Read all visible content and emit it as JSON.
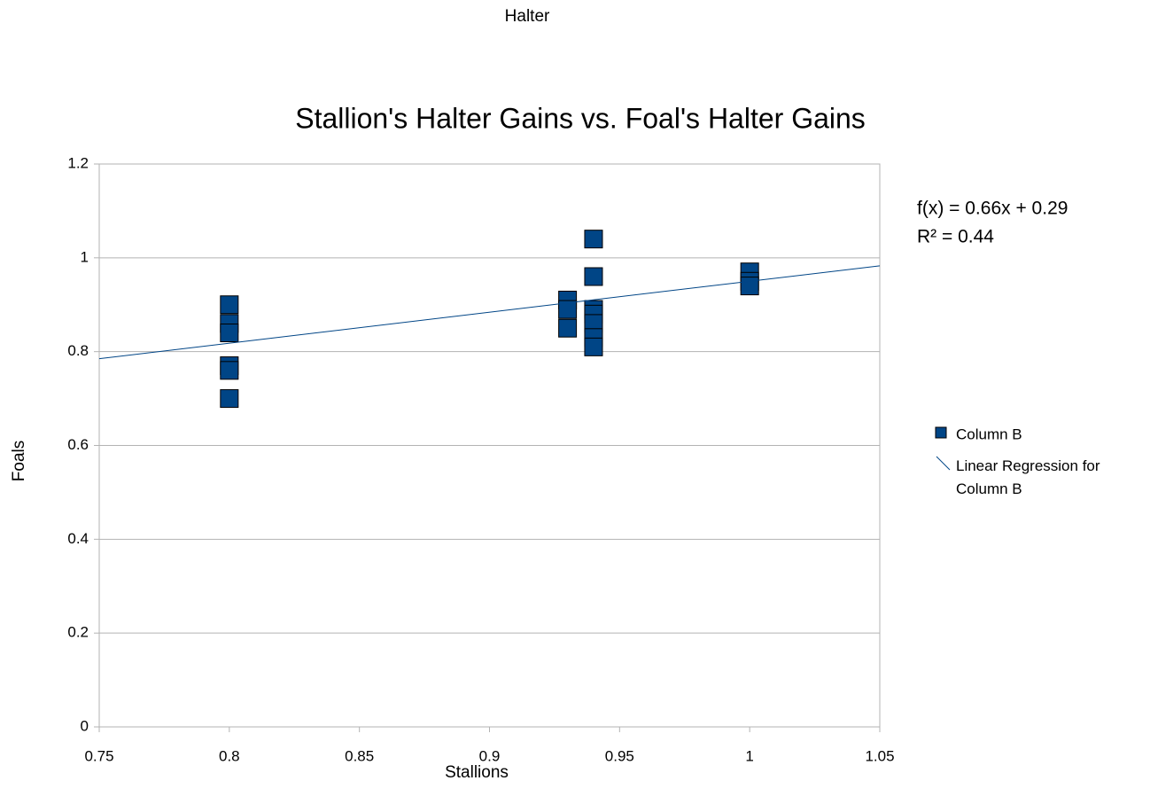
{
  "chart_data": {
    "type": "scatter",
    "super_title": "Halter",
    "title": "Stallion's Halter Gains vs. Foal's Halter Gains",
    "x_label": "Stallions",
    "y_label": "Foals",
    "series": [
      {
        "name": "Column B",
        "color": "#004586",
        "x": [
          0.8,
          0.8,
          0.8,
          0.8,
          0.8,
          0.8,
          0.93,
          0.93,
          0.93,
          0.94,
          0.94,
          0.94,
          0.94,
          0.94,
          0.94,
          0.94,
          1,
          1,
          1
        ],
        "values": [
          0.9,
          0.86,
          0.84,
          0.77,
          0.76,
          0.7,
          0.91,
          0.89,
          0.85,
          1.04,
          0.96,
          0.89,
          0.88,
          0.86,
          0.83,
          0.81,
          0.97,
          0.95,
          0.94
        ]
      }
    ],
    "trendline": {
      "name": "Linear Regression for Column B",
      "slope": 0.66,
      "intercept": 0.29,
      "color": "#004586",
      "equation": "f(x) = 0.66x + 0.29",
      "r_squared": "R² = 0.44"
    },
    "xlim": [
      0.75,
      1.05
    ],
    "xticks": [
      0.75,
      0.8,
      0.85,
      0.9,
      0.95,
      1,
      1.05
    ],
    "ylim": [
      0,
      1.2
    ],
    "yticks": [
      0,
      0.2,
      0.4,
      0.6,
      0.8,
      1,
      1.2
    ],
    "grid": true
  }
}
